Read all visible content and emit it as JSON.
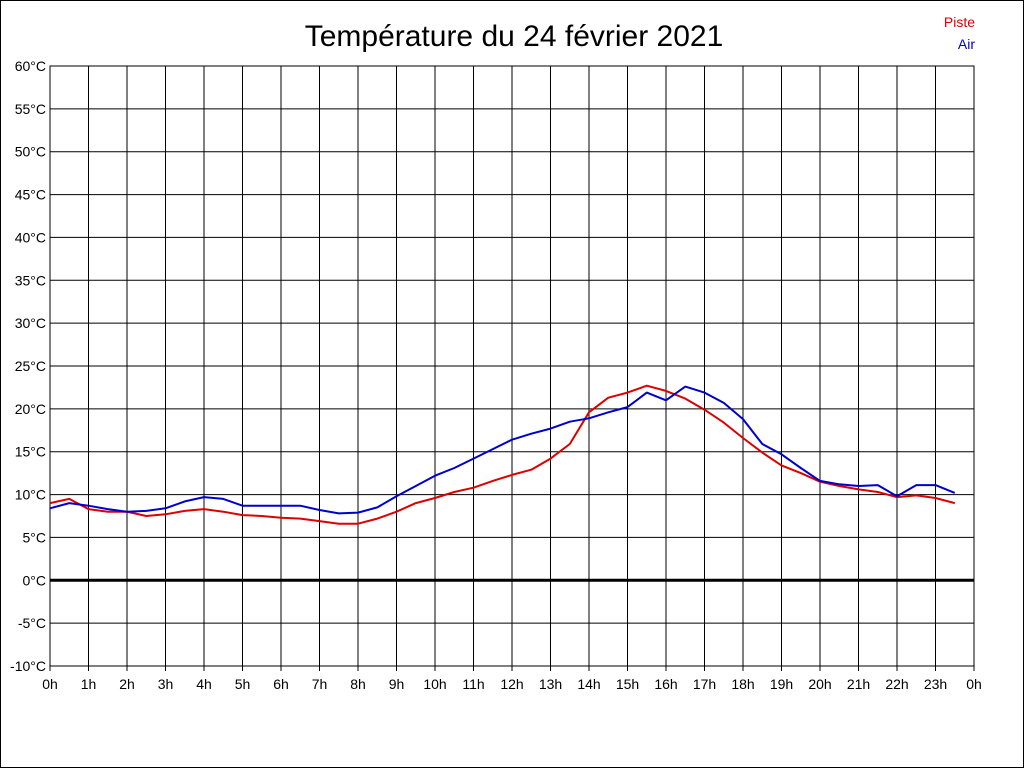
{
  "chart_data": {
    "type": "line",
    "title": "Température du 24 février 2021",
    "xlabel": "",
    "ylabel": "",
    "x_ticks": [
      "0h",
      "1h",
      "2h",
      "3h",
      "4h",
      "5h",
      "6h",
      "7h",
      "8h",
      "9h",
      "10h",
      "11h",
      "12h",
      "13h",
      "14h",
      "15h",
      "16h",
      "17h",
      "18h",
      "19h",
      "20h",
      "21h",
      "22h",
      "23h",
      "0h"
    ],
    "y_ticks": [
      "60°C",
      "55°C",
      "50°C",
      "45°C",
      "40°C",
      "35°C",
      "30°C",
      "25°C",
      "20°C",
      "15°C",
      "10°C",
      "5°C",
      "0°C",
      "-5°C",
      "-10°C"
    ],
    "ylim": [
      -10,
      60
    ],
    "xlim": [
      0,
      24
    ],
    "grid": true,
    "legend_position": "top-right",
    "zero_line": true,
    "series": [
      {
        "name": "Piste",
        "color": "#dd0000",
        "x": [
          0,
          0.5,
          1,
          1.5,
          2,
          2.5,
          3,
          3.5,
          4,
          4.5,
          5,
          5.5,
          6,
          6.5,
          7,
          7.5,
          8,
          8.5,
          9,
          9.5,
          10,
          10.5,
          11,
          11.5,
          12,
          12.5,
          13,
          13.5,
          14,
          14.5,
          15,
          15.5,
          16,
          16.5,
          17,
          17.5,
          18,
          18.5,
          19,
          19.5,
          20,
          20.5,
          21,
          21.5,
          22,
          22.5,
          23,
          23.5
        ],
        "y": [
          9.0,
          9.5,
          8.3,
          8.0,
          8.0,
          7.5,
          7.7,
          8.1,
          8.3,
          8.0,
          7.6,
          7.5,
          7.3,
          7.2,
          6.9,
          6.6,
          6.6,
          7.2,
          8.0,
          9.0,
          9.6,
          10.3,
          10.8,
          11.6,
          12.3,
          12.9,
          14.2,
          15.9,
          19.6,
          21.3,
          21.9,
          22.7,
          22.1,
          21.2,
          19.9,
          18.4,
          16.6,
          14.9,
          13.4,
          12.5,
          11.5,
          11.0,
          10.6,
          10.3,
          9.7,
          9.9,
          9.6,
          9.0
        ]
      },
      {
        "name": "Air",
        "color": "#0000cc",
        "x": [
          0,
          0.5,
          1,
          1.5,
          2,
          2.5,
          3,
          3.5,
          4,
          4.5,
          5,
          5.5,
          6,
          6.5,
          7,
          7.5,
          8,
          8.5,
          9,
          9.5,
          10,
          10.5,
          11,
          11.5,
          12,
          12.5,
          13,
          13.5,
          14,
          14.5,
          15,
          15.5,
          16,
          16.5,
          17,
          17.5,
          18,
          18.5,
          19,
          19.5,
          20,
          20.5,
          21,
          21.5,
          22,
          22.5,
          23,
          23.5
        ],
        "y": [
          8.4,
          9.0,
          8.7,
          8.3,
          8.0,
          8.1,
          8.4,
          9.2,
          9.7,
          9.5,
          8.7,
          8.7,
          8.7,
          8.7,
          8.2,
          7.8,
          7.9,
          8.5,
          9.8,
          11.0,
          12.2,
          13.1,
          14.2,
          15.3,
          16.4,
          17.1,
          17.7,
          18.5,
          18.9,
          19.6,
          20.2,
          21.9,
          21.0,
          22.6,
          21.9,
          20.7,
          18.8,
          15.9,
          14.7,
          13.1,
          11.6,
          11.2,
          11.0,
          11.1,
          9.8,
          11.1,
          11.1,
          10.2
        ]
      }
    ]
  }
}
